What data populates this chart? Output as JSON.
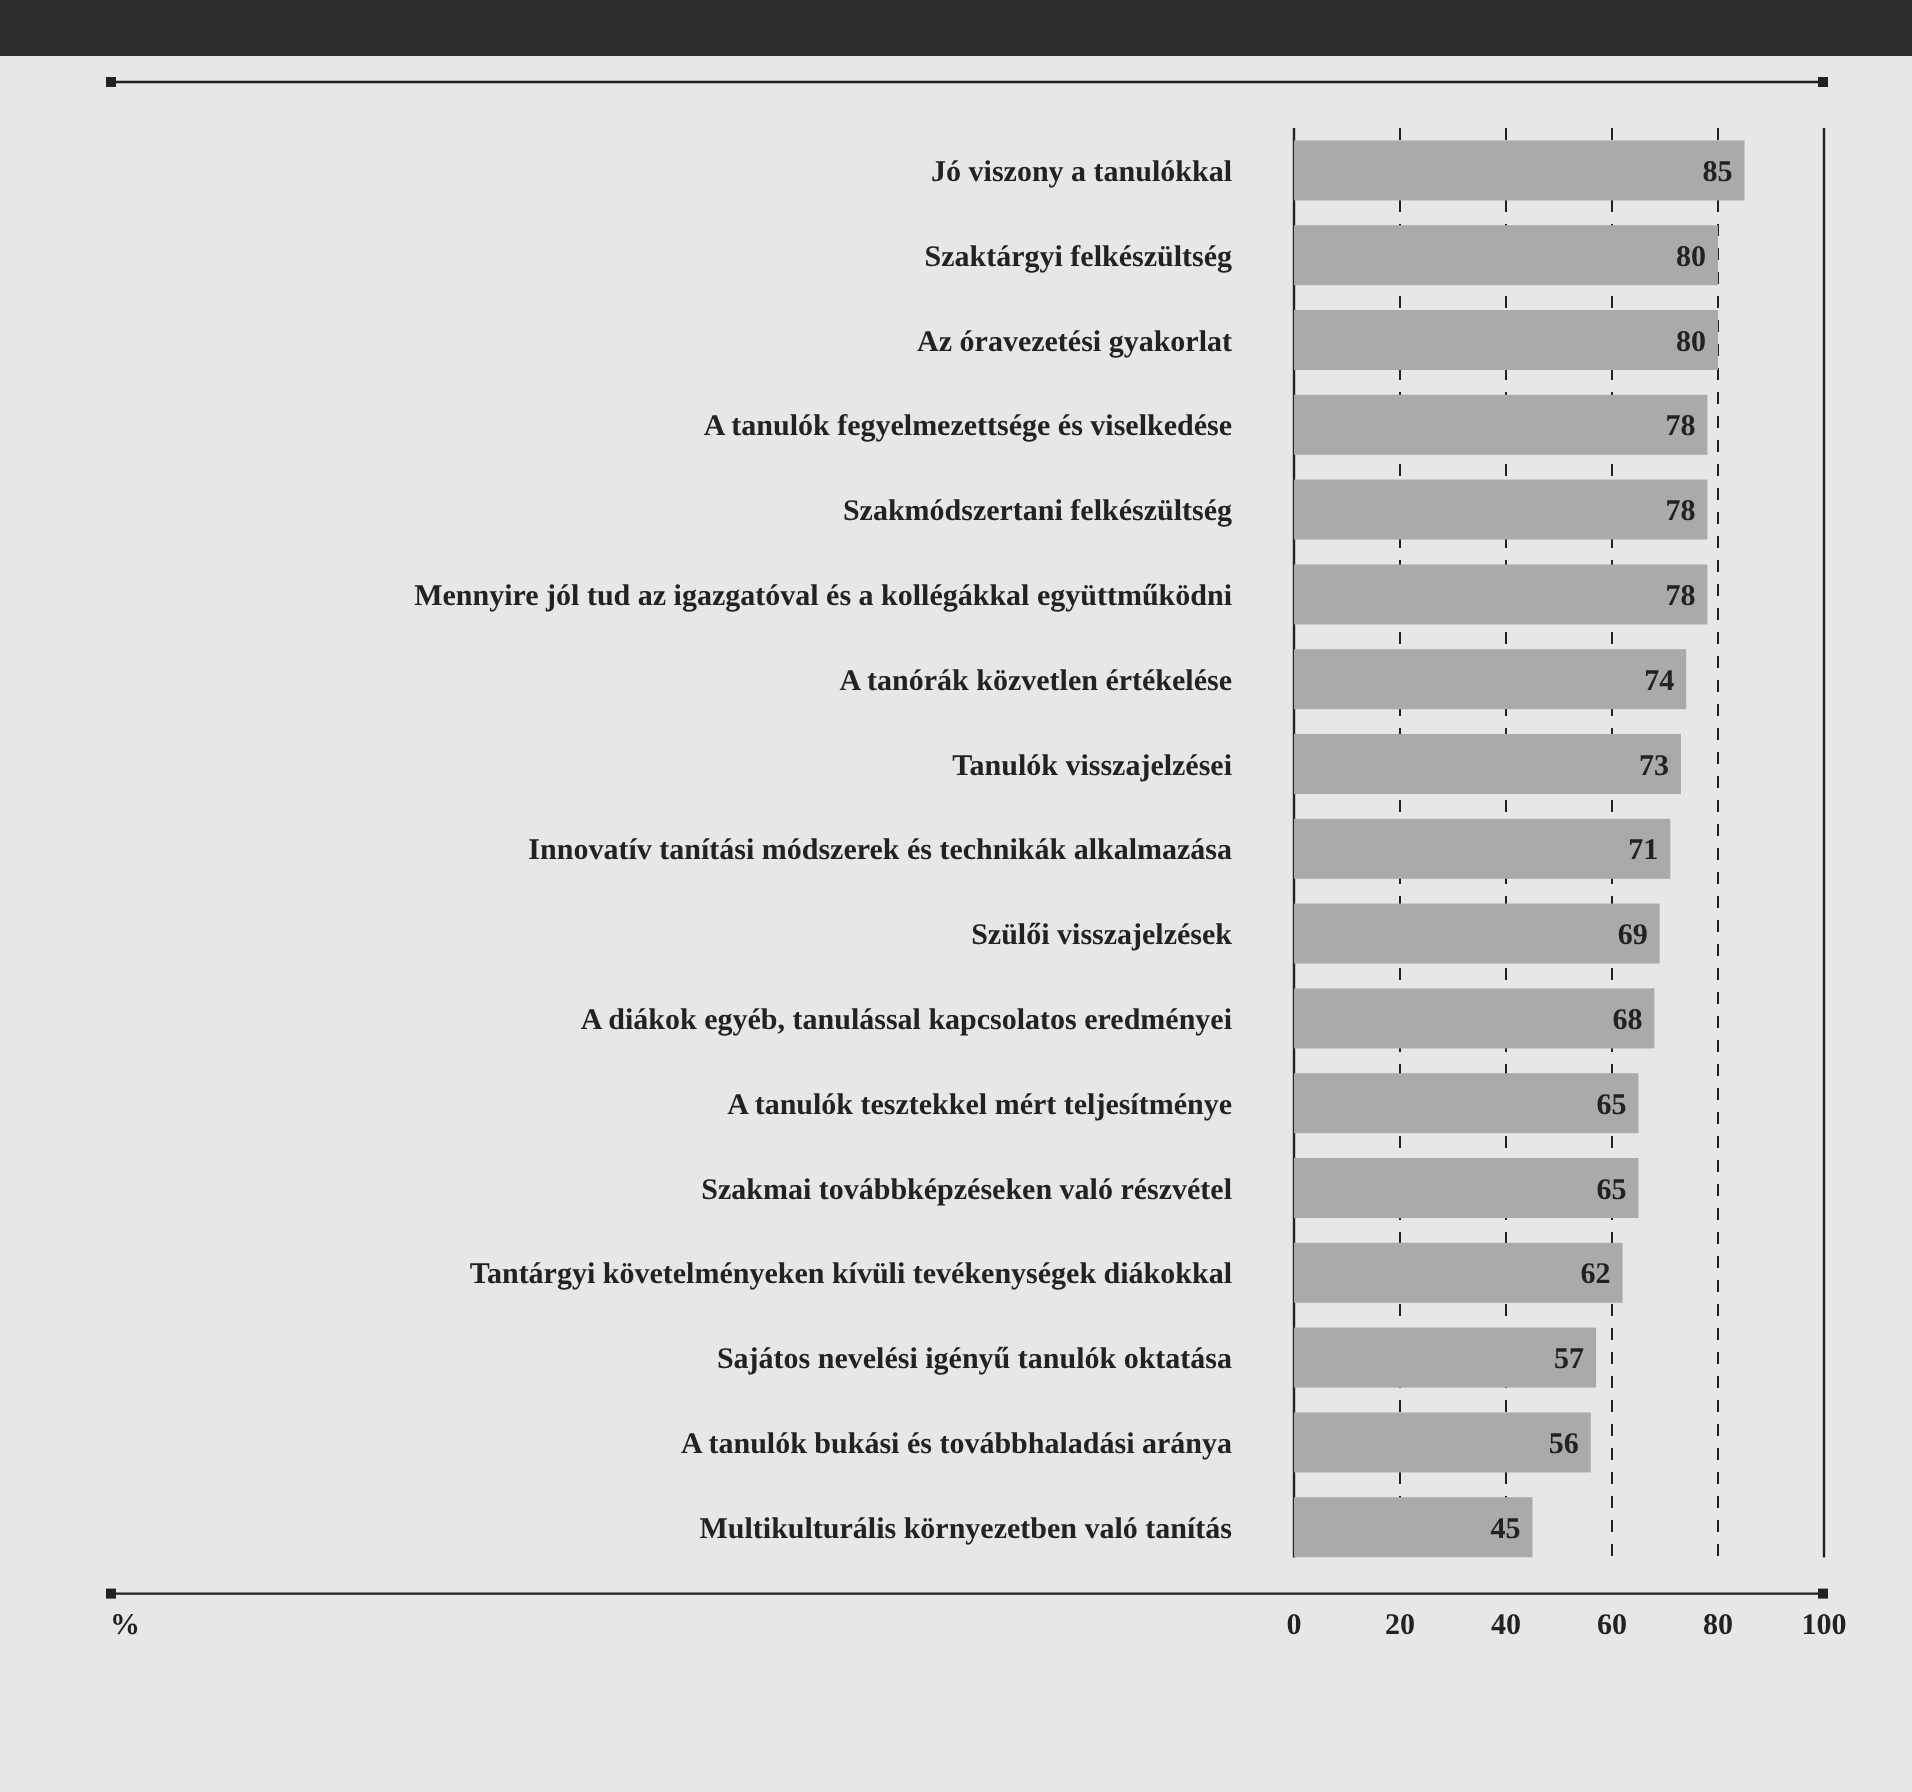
{
  "chart_data": {
    "type": "bar",
    "orientation": "horizontal",
    "annotations": [
      "%"
    ],
    "categories": [
      "Jó viszony a tanulókkal",
      "Szaktárgyi felkészültség",
      "Az óravezetési gyakorlat",
      "A tanulók fegyelmezettsége és viselkedése",
      "Szakmódszertani felkészültség",
      "Mennyire jól tud az igazgatóval és a kollégákkal együttműködni",
      "A tanórák közvetlen értékelése",
      "Tanulók visszajelzései",
      "Innovatív tanítási módszerek és technikák alkalmazása",
      "Szülői visszajelzések",
      "A diákok egyéb, tanulással kapcsolatos eredményei",
      "A tanulók tesztekkel mért teljesítménye",
      "Szakmai továbbképzéseken való részvétel",
      "Tantárgyi követelményeken kívüli tevékenységek diákokkal",
      "Sajátos nevelési igényű tanulók oktatása",
      "A tanulók bukási és továbbhaladási aránya",
      "Multikulturális környezetben való tanítás"
    ],
    "values": [
      85,
      80,
      80,
      78,
      78,
      78,
      74,
      73,
      71,
      69,
      68,
      65,
      65,
      62,
      57,
      56,
      45
    ],
    "color": "#aaaaaa",
    "data_labels": true,
    "xlim": [
      0,
      100
    ],
    "xticks": [
      0,
      20,
      40,
      60,
      80,
      100
    ],
    "grid": "x"
  }
}
